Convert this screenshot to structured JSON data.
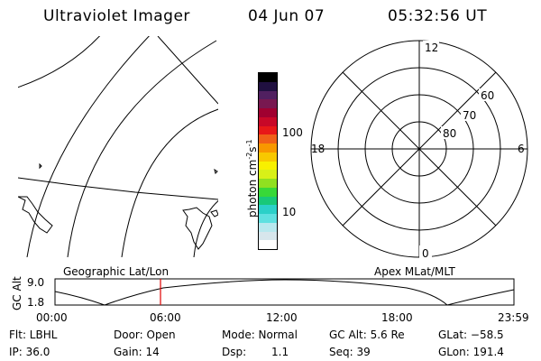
{
  "header": {
    "title": "Ultraviolet Imager",
    "date": "04 Jun 07",
    "time": "05:32:56 UT"
  },
  "colorbar": {
    "label": "photon cm",
    "label_exp1": "-2",
    "label_s": "s",
    "label_exp2": "-1",
    "ticks": [
      "100",
      "10"
    ],
    "colors": [
      "#ffffff",
      "#d7e6ec",
      "#b8e8ee",
      "#5fe0e0",
      "#2bd0c8",
      "#18c878",
      "#38d838",
      "#90e020",
      "#d8f018",
      "#f8f000",
      "#f8c800",
      "#f89800",
      "#f06018",
      "#e81818",
      "#c80828",
      "#a00030",
      "#781850",
      "#502060",
      "#201040",
      "#000000"
    ]
  },
  "polar": {
    "mlt_labels": {
      "top": "12",
      "bottom": "0",
      "left": "18",
      "right": "6"
    },
    "lat_labels": [
      "60",
      "70",
      "80"
    ]
  },
  "timeline": {
    "left_label": "Geographic Lat/Lon",
    "right_label": "Apex MLat/MLT",
    "y_axis_label": "GC Alt",
    "y_ticks": [
      "9.0",
      "1.8"
    ],
    "x_ticks": [
      "00:00",
      "06:00",
      "12:00",
      "18:00",
      "23:59"
    ]
  },
  "status": {
    "flt": "Flt: LBHL",
    "ip": "IP: 36.0",
    "door": "Door: Open",
    "gain": "Gain: 14",
    "mode": "Mode: Normal",
    "dsp_label": "Dsp:",
    "dsp_value": "1.1",
    "gc_alt": "GC Alt: 5.6 Re",
    "seq": "Seq: 39",
    "glat": "GLat: −58.5",
    "glon": "GLon: 191.4"
  }
}
